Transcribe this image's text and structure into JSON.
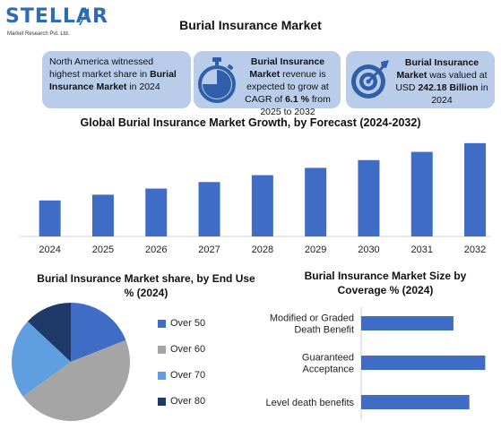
{
  "logo": {
    "brand": "STELLAR",
    "tagline": "Market Research Pvt. Ltd."
  },
  "title": "Burial Insurance Market",
  "cards": {
    "c1": {
      "pre": "North America witnessed highest market share in ",
      "bold": "Burial Insurance Market",
      "post": " in 2024"
    },
    "c2": {
      "bold": "Burial Insurance Market",
      "mid": " revenue is expected to grow at CAGR of ",
      "bold2": "6.1 %",
      "post": " from 2025 to 2032",
      "icon": "stopwatch-icon"
    },
    "c3": {
      "bold": "Burial Insurance Market",
      "mid": " was valued at USD ",
      "bold2": "242.18 Billion",
      "post": " in 2024",
      "icon": "target-icon"
    }
  },
  "colors": {
    "bar": "#3f6cc5",
    "card": "#b9cdea",
    "brand": "#2b6cb5"
  },
  "chart_data": [
    {
      "type": "bar",
      "title": "Global Burial Insurance Market Growth, by Forecast (2024-2032)",
      "categories": [
        "2024",
        "2025",
        "2026",
        "2027",
        "2028",
        "2029",
        "2030",
        "2031",
        "2032"
      ],
      "values": [
        242.18,
        256.96,
        272.63,
        289.26,
        306.9,
        325.62,
        345.48,
        366.56,
        388.92
      ],
      "ylim": [
        150,
        400
      ],
      "grid": false,
      "legend": "none"
    },
    {
      "type": "pie",
      "title": "Burial Insurance Market share, by End Use % (2024)",
      "labels": [
        "Over 50",
        "Over 60",
        "Over 70",
        "Over 80"
      ],
      "values": [
        19,
        46,
        22,
        13
      ],
      "colors": [
        "#3f6cc5",
        "#a5a5a5",
        "#5f9ee0",
        "#1f3a68"
      ],
      "legend": "right"
    },
    {
      "type": "bar",
      "orientation": "horizontal",
      "title": "Burial Insurance Market Size by Coverage % (2024)",
      "categories": [
        "Modified or Graded Death Benefit",
        "Guaranteed Acceptance",
        "Level death benefits"
      ],
      "category_lines": [
        [
          "Modified or Graded",
          "Death Benefit"
        ],
        [
          "Guaranteed",
          "Acceptance"
        ],
        [
          "Level death benefits"
        ]
      ],
      "values": [
        29,
        39,
        34
      ],
      "xlim": [
        0,
        40
      ],
      "legend": "none"
    }
  ]
}
